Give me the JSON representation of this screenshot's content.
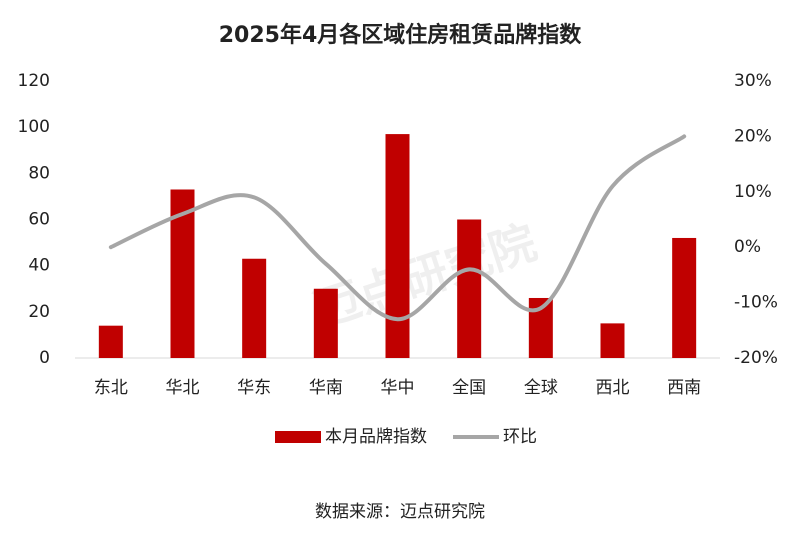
{
  "chart_data": {
    "type": "bar_line",
    "title": "2025年4月各区域住房租赁品牌指数",
    "categories": [
      "东北",
      "华北",
      "华东",
      "华南",
      "华中",
      "全国",
      "全球",
      "西北",
      "西南"
    ],
    "series": [
      {
        "name": "本月品牌指数",
        "type": "bar",
        "color": "#c00000",
        "values": [
          14,
          73,
          43,
          30,
          97,
          60,
          26,
          15,
          52
        ]
      },
      {
        "name": "环比",
        "type": "line",
        "color": "#a6a6a6",
        "axis": "y2",
        "values": [
          0,
          6,
          9,
          -3,
          -13,
          -4,
          -11,
          11,
          20
        ]
      }
    ],
    "ylim": [
      0,
      120
    ],
    "yticks": [
      0,
      20,
      40,
      60,
      80,
      100,
      120
    ],
    "y2lim": [
      -20,
      30
    ],
    "y2ticks": [
      {
        "value": -20,
        "label": "-20%"
      },
      {
        "value": -10,
        "label": "-10%"
      },
      {
        "value": 0,
        "label": "0%"
      },
      {
        "value": 10,
        "label": "10%"
      },
      {
        "value": 20,
        "label": "20%"
      },
      {
        "value": 30,
        "label": "30%"
      }
    ],
    "grid": false,
    "legend": "bottom",
    "watermark": "迈点研究院",
    "source": "数据来源：迈点研究院"
  }
}
